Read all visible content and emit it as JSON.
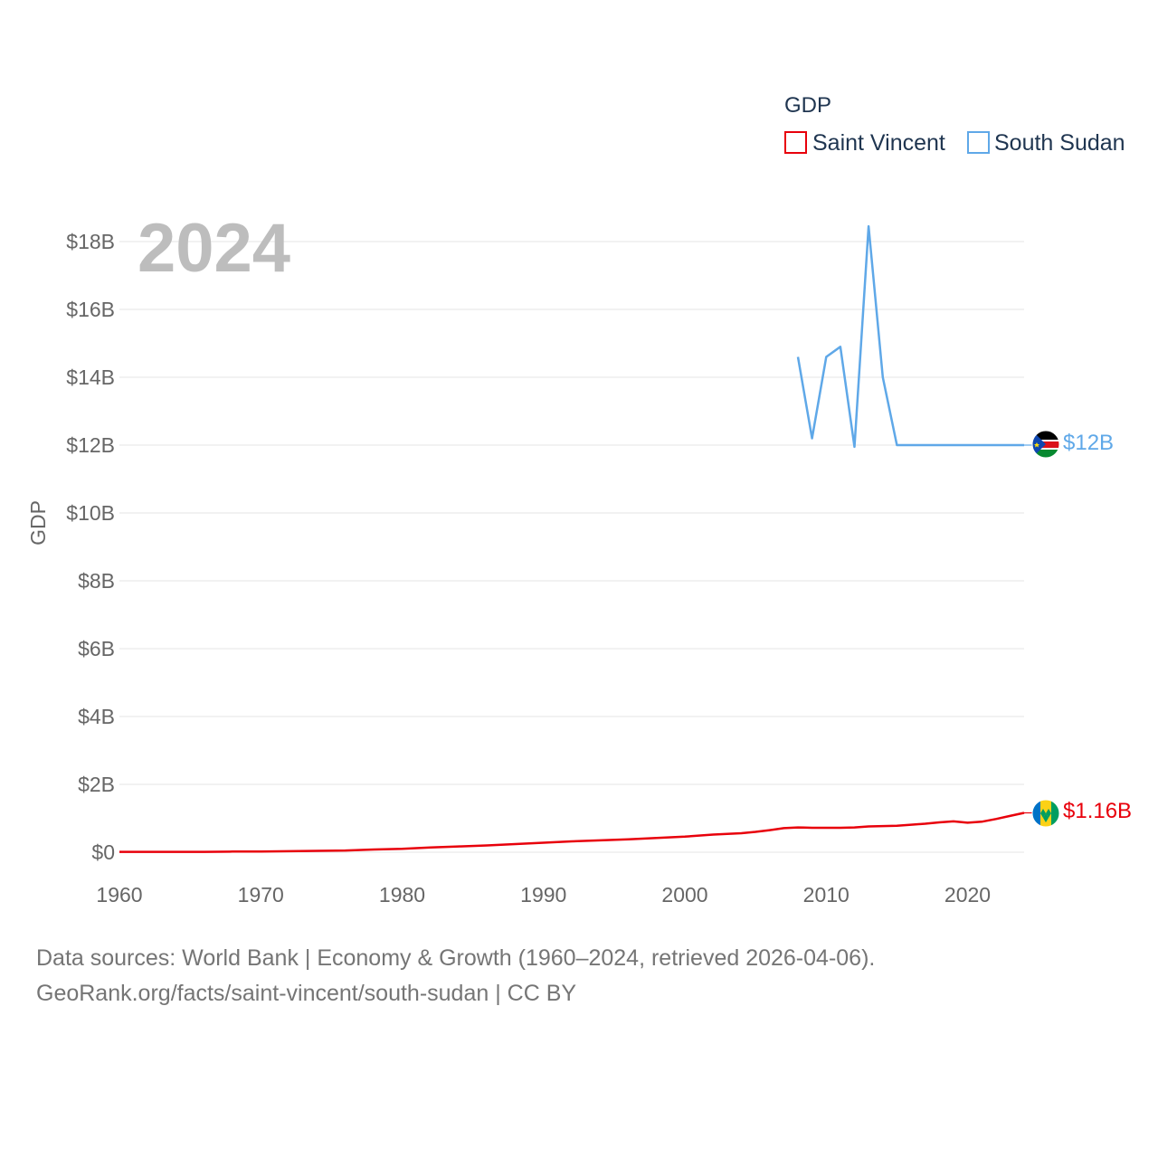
{
  "chart_data": {
    "type": "line",
    "year_overlay": "2024",
    "legend_title": "GDP",
    "ylabel": "GDP",
    "xlabel": "",
    "xlim": [
      1960,
      2024
    ],
    "ylim": [
      0,
      18
    ],
    "y_unit": "billion USD",
    "x_ticks": [
      {
        "value": 1960,
        "label": "1960"
      },
      {
        "value": 1970,
        "label": "1970"
      },
      {
        "value": 1980,
        "label": "1980"
      },
      {
        "value": 1990,
        "label": "1990"
      },
      {
        "value": 2000,
        "label": "2000"
      },
      {
        "value": 2010,
        "label": "2010"
      },
      {
        "value": 2020,
        "label": "2020"
      }
    ],
    "y_ticks": [
      {
        "value": 0,
        "label": "$0"
      },
      {
        "value": 2,
        "label": "$2B"
      },
      {
        "value": 4,
        "label": "$4B"
      },
      {
        "value": 6,
        "label": "$6B"
      },
      {
        "value": 8,
        "label": "$8B"
      },
      {
        "value": 10,
        "label": "$10B"
      },
      {
        "value": 12,
        "label": "$12B"
      },
      {
        "value": 14,
        "label": "$14B"
      },
      {
        "value": 16,
        "label": "$16B"
      },
      {
        "value": 18,
        "label": "$18B"
      }
    ],
    "series": [
      {
        "name": "Saint Vincent",
        "color": "#e8000b",
        "end_label": "$1.16B",
        "flag": "saint-vincent-flag",
        "x": [
          1960,
          1962,
          1964,
          1966,
          1968,
          1970,
          1972,
          1974,
          1976,
          1978,
          1980,
          1982,
          1984,
          1986,
          1988,
          1990,
          1992,
          1994,
          1996,
          1998,
          2000,
          2002,
          2004,
          2005,
          2006,
          2007,
          2008,
          2009,
          2010,
          2011,
          2012,
          2013,
          2014,
          2015,
          2016,
          2017,
          2018,
          2019,
          2020,
          2021,
          2022,
          2023,
          2024
        ],
        "values": [
          0.01,
          0.01,
          0.01,
          0.01,
          0.02,
          0.02,
          0.03,
          0.04,
          0.05,
          0.08,
          0.1,
          0.14,
          0.17,
          0.2,
          0.24,
          0.28,
          0.32,
          0.35,
          0.38,
          0.42,
          0.46,
          0.52,
          0.56,
          0.6,
          0.65,
          0.71,
          0.73,
          0.72,
          0.72,
          0.72,
          0.73,
          0.76,
          0.77,
          0.78,
          0.81,
          0.84,
          0.88,
          0.91,
          0.87,
          0.9,
          0.98,
          1.07,
          1.16
        ]
      },
      {
        "name": "South Sudan",
        "color": "#5fa8e8",
        "end_label": "$12B",
        "flag": "south-sudan-flag",
        "x": [
          2008,
          2009,
          2010,
          2011,
          2012,
          2013,
          2014,
          2015,
          2016,
          2017,
          2018,
          2019,
          2020,
          2021,
          2022,
          2023,
          2024
        ],
        "values": [
          14.6,
          12.2,
          14.6,
          14.9,
          11.95,
          18.45,
          14.0,
          12.0,
          12.0,
          12.0,
          12.0,
          12.0,
          12.0,
          12.0,
          12.0,
          12.0,
          12.0
        ]
      }
    ]
  },
  "footer": {
    "line1": "Data sources: World Bank | Economy & Growth (1960–2024, retrieved 2026-04-06).",
    "line2": "GeoRank.org/facts/saint-vincent/south-sudan | CC BY"
  }
}
